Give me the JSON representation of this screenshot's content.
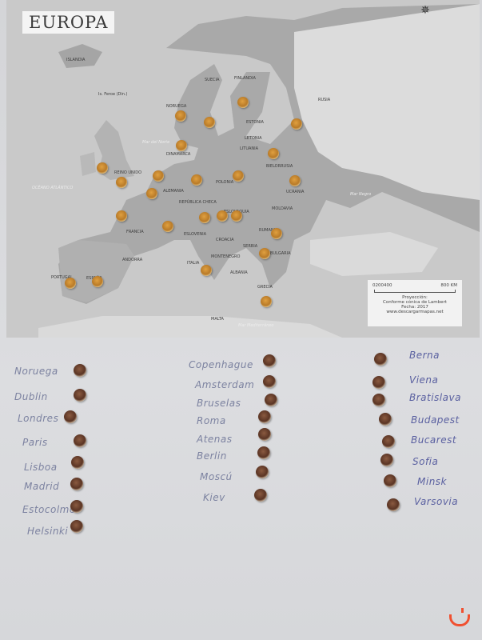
{
  "map": {
    "title": "EUROPA",
    "country_labels": [
      "ISLANDIA",
      "SUECIA",
      "FINLANDIA",
      "RUSIA",
      "NORUEGA",
      "ESTONIA",
      "LETONIA",
      "LITUANIA",
      "BIELORRUSIA",
      "DINAMARCA",
      "REINO UNIDO",
      "POLONIA",
      "ALEMANIA",
      "REPÚBLICA CHECA",
      "ESLOVAQUIA",
      "UCRANIA",
      "MOLDAVIA",
      "FRANCIA",
      "RUMANIA",
      "ESLOVENIA",
      "CROACIA",
      "SERBIA",
      "BULGARIA",
      "MONTENEGRO",
      "ITALIA",
      "ALBANIA",
      "GRECIA",
      "PORTUGAL",
      "ESPAÑA",
      "ANDORRA",
      "MALTA",
      "Is. Feroe (Din.)"
    ],
    "sea_labels": [
      "OCÉANO ATLÁNTICO",
      "Mar del Norte",
      "Mar Negro",
      "Mar Mediterráneo"
    ],
    "legend": {
      "scale_ticks": [
        "0",
        "200",
        "400",
        "800 KM"
      ],
      "projection_label": "Proyección:",
      "projection": "Conforme cónica de Lambert",
      "date": "Fecha: 2017",
      "website": "www.descargarmapas.net"
    },
    "compass_icon": "compass-rose-icon"
  },
  "worksheet": {
    "column1": [
      "Noruega",
      "Dublin",
      "Londres",
      "Paris",
      "Lisboa",
      "Madrid",
      "Estocolmo",
      "Helsinki"
    ],
    "column2": [
      "Copenhague",
      "Amsterdam",
      "Bruselas",
      "Roma",
      "Atenas",
      "Berlin",
      "Moscú",
      "Kiev"
    ],
    "column3": [
      "Berna",
      "Viena",
      "Bratislava",
      "Budapest",
      "Bucarest",
      "Sofia",
      "Minsk",
      "Varsovia"
    ]
  },
  "colors": {
    "pin_gold": "#c08030",
    "pin_brown": "#5a3424",
    "handwriting": "#7c82a0",
    "watermark": "#f05030"
  }
}
